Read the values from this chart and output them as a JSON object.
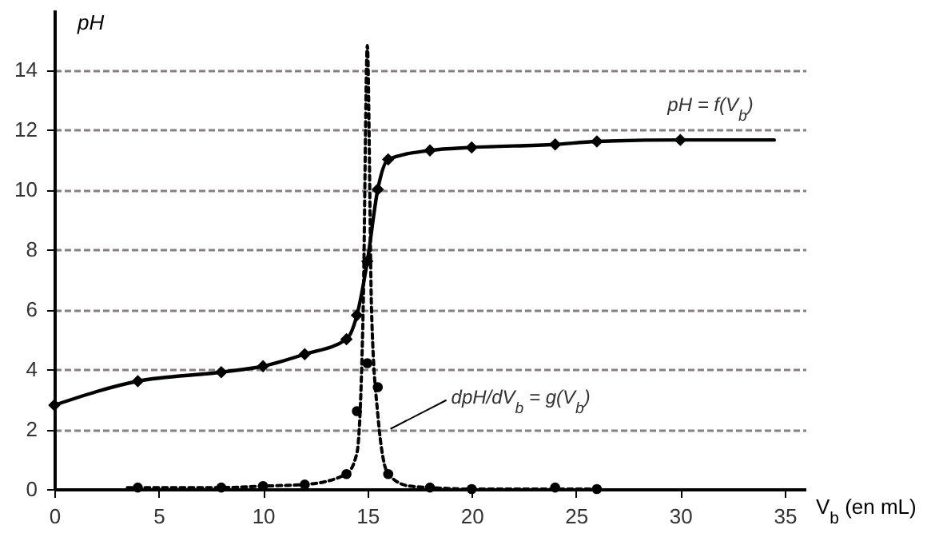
{
  "chart_data": {
    "type": "scatter",
    "xlabel": "V$_{b}$ (en mL)",
    "ylabel": "pH",
    "xlim": [
      0,
      36
    ],
    "ylim": [
      0,
      16
    ],
    "xticks": [
      0,
      5,
      10,
      15,
      20,
      25,
      30,
      35
    ],
    "yticks": [
      0,
      2,
      4,
      6,
      8,
      10,
      12,
      14
    ],
    "grid": "y",
    "series": [
      {
        "type": "line",
        "color": "#000000",
        "marker": "none",
        "line_style": "solid",
        "x": [
          0,
          4,
          8,
          10,
          12,
          14,
          14.5,
          15,
          15.5,
          16,
          18,
          20,
          24,
          26,
          30,
          34.5
        ],
        "values": [
          2.8,
          3.6,
          3.9,
          4.1,
          4.5,
          5.0,
          5.8,
          7.6,
          10.0,
          11.0,
          11.3,
          11.4,
          11.5,
          11.6,
          11.65,
          11.65
        ]
      },
      {
        "color": "#000000",
        "marker": "diamond",
        "x": [
          0,
          4,
          8,
          10,
          12,
          14,
          14.5,
          15,
          15.5,
          16,
          18,
          20,
          24,
          26,
          30
        ],
        "values": [
          2.8,
          3.6,
          3.9,
          4.1,
          4.5,
          5.0,
          5.8,
          7.6,
          10.0,
          11.0,
          11.3,
          11.4,
          11.5,
          11.6,
          11.65
        ]
      },
      {
        "type": "line",
        "color": "#000000",
        "marker": "none",
        "line_style": "dotted",
        "x": [
          3.5,
          8,
          10,
          12,
          14,
          14.5,
          14.8,
          15,
          15.2,
          15.5,
          16,
          17,
          18,
          20,
          26
        ],
        "values": [
          0.05,
          0.05,
          0.1,
          0.15,
          0.5,
          1.2,
          6,
          14.8,
          6,
          2.5,
          0.5,
          0.1,
          0.05,
          0,
          0
        ]
      },
      {
        "color": "#000000",
        "marker": "circle",
        "x": [
          4,
          8,
          10,
          12,
          14,
          14.5,
          15,
          15.5,
          16,
          18,
          20,
          24,
          26
        ],
        "values": [
          0.05,
          0.05,
          0.1,
          0.15,
          0.5,
          2.6,
          4.2,
          3.4,
          0.5,
          0.05,
          0,
          0.05,
          0
        ]
      }
    ],
    "annotations": [
      {
        "text": "pH = f(V$_{b}$)",
        "x": 30,
        "y": 11.65
      },
      {
        "text": "dpH/dV$_{b}$ = g(V$_{b}$)",
        "x": 15.8,
        "y": 1.9
      }
    ]
  }
}
